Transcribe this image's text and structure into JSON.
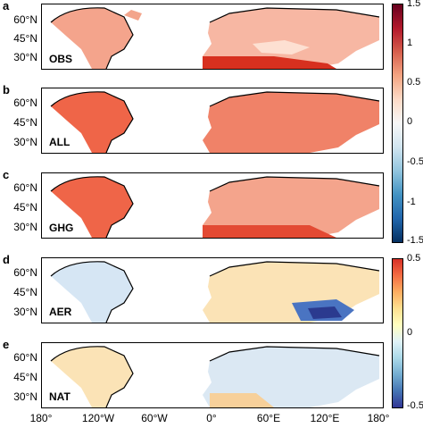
{
  "figure": {
    "panels": [
      {
        "letter": "a",
        "label": "OBS",
        "lat_ticks": [
          "60°N",
          "45°N",
          "30°N"
        ]
      },
      {
        "letter": "b",
        "label": "ALL",
        "lat_ticks": [
          "60°N",
          "45°N",
          "30°N"
        ]
      },
      {
        "letter": "c",
        "label": "GHG",
        "lat_ticks": [
          "60°N",
          "45°N",
          "30°N"
        ]
      },
      {
        "letter": "d",
        "label": "AER",
        "lat_ticks": [
          "60°N",
          "45°N",
          "30°N"
        ]
      },
      {
        "letter": "e",
        "label": "NAT",
        "lat_ticks": [
          "60°N",
          "45°N",
          "30°N"
        ]
      }
    ],
    "lon_ticks": [
      "180°",
      "120°W",
      "60°W",
      "0°",
      "60°E",
      "120°E",
      "180°"
    ],
    "colorbar_top": {
      "ticks": [
        "1.5",
        "1",
        "0.5",
        "0",
        "-0.5",
        "-1",
        "-1.5"
      ]
    },
    "colorbar_bottom": {
      "ticks": [
        "0.5",
        "0",
        "-0.5"
      ]
    },
    "colors": {
      "strong_red": "#d7301f",
      "mid_red": "#ef6548",
      "light_red": "#fcae91",
      "pale": "#fde0d2",
      "warm_pale": "#fbe3b6",
      "light_blue": "#c6dbef",
      "blue": "#4a74c2",
      "dark_blue": "#2b3a8f"
    }
  }
}
